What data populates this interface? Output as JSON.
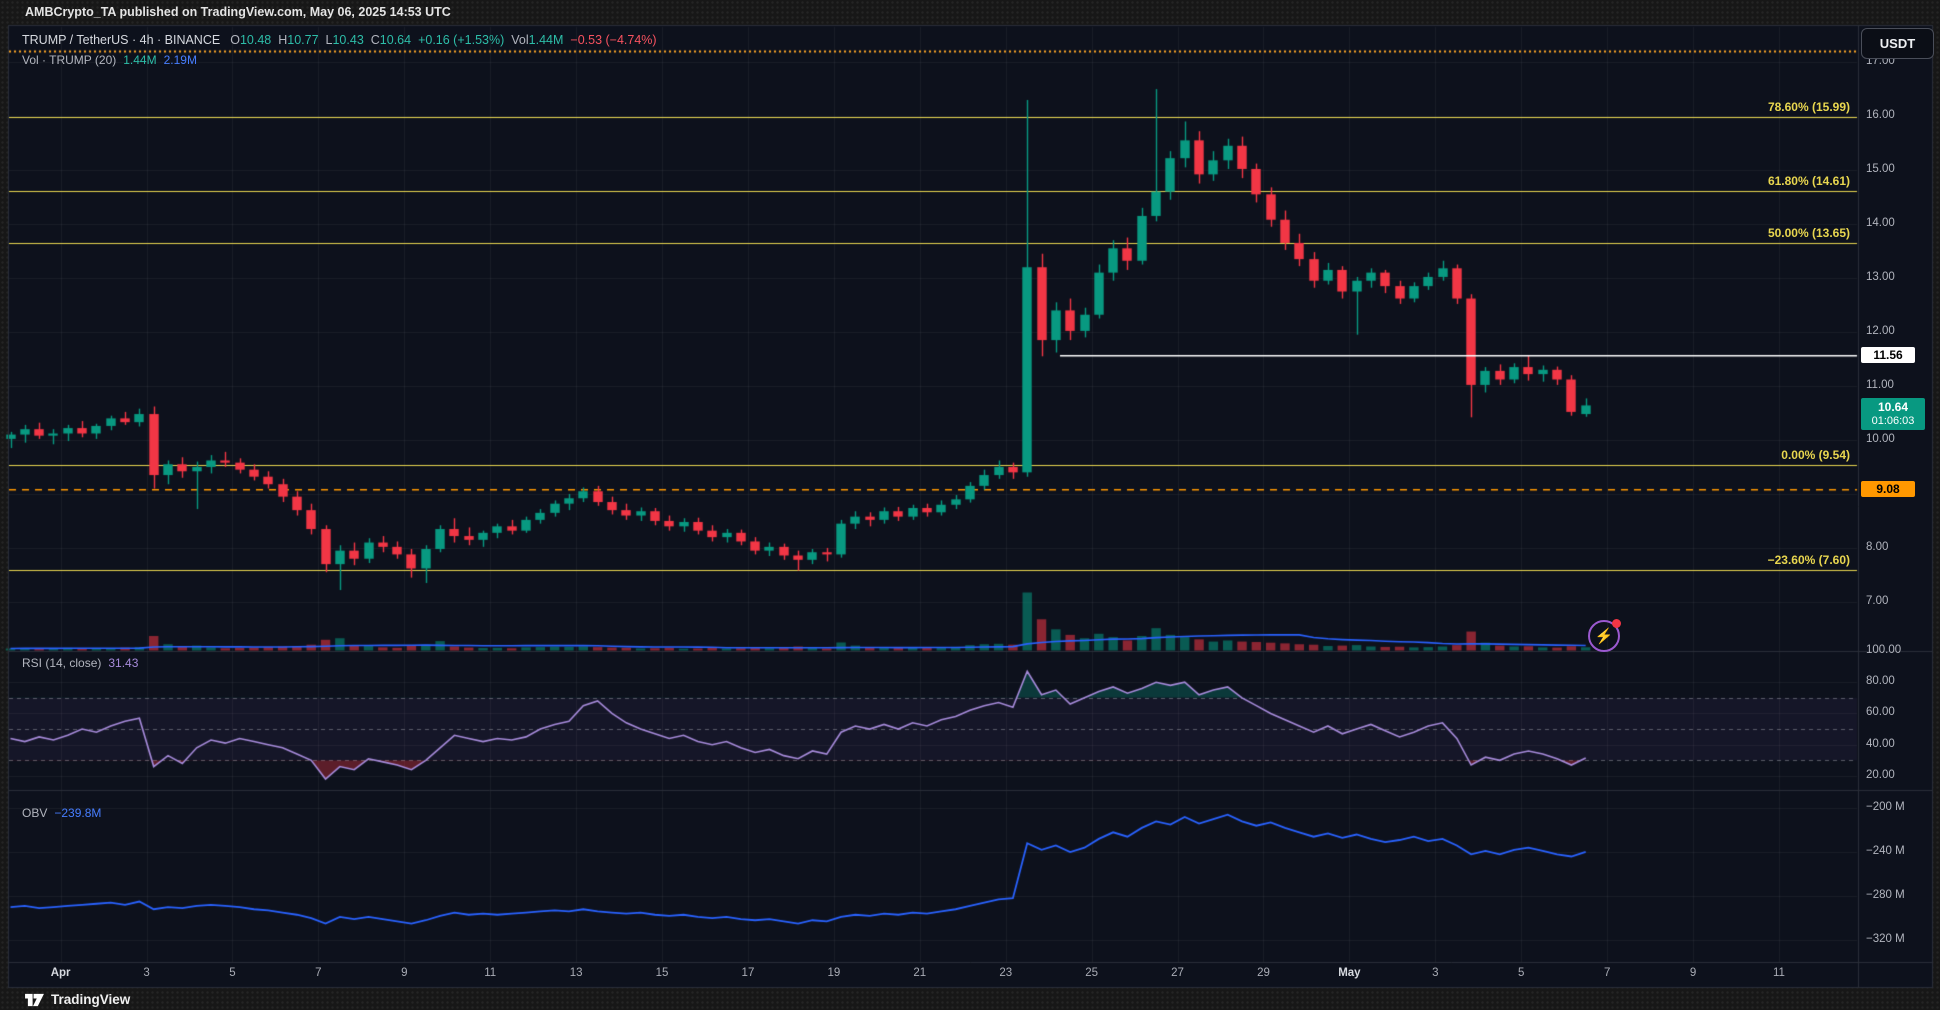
{
  "header": {
    "attribution": "AMBCrypto_TA published on TradingView.com, May 06, 2025 14:53 UTC",
    "currency": "USDT"
  },
  "legend": {
    "symbol": "TRUMP / TetherUS · 4h · BINANCE",
    "o_label": "O",
    "o_value": "10.48",
    "h_label": "H",
    "h_value": "10.77",
    "l_label": "L",
    "l_value": "10.43",
    "c_label": "C",
    "c_value": "10.64",
    "change": "+0.16 (+1.53%)",
    "vol_label": "Vol",
    "vol_value": "1.44M",
    "vol_change": "−0.53 (−4.74%)",
    "row2_label": "Vol · TRUMP (20)",
    "row2_value1": "1.44M",
    "row2_value2": "2.19M"
  },
  "rsi_pane": {
    "label": "RSI (14, close)",
    "value": "31.43"
  },
  "obv_pane": {
    "label": "OBV",
    "value": "−239.8M"
  },
  "footer": {
    "brand": "TradingView"
  },
  "icons": {
    "flash_bolt": "⚡"
  },
  "colors": {
    "up": "#089981",
    "down": "#f23645",
    "fib": "#e8d64f",
    "alert": "#ff9800",
    "rsi_line": "#a78bdb",
    "obv_line": "#2962ff",
    "vol_ma": "#2962ff",
    "white_line": "#ffffff",
    "last_label_bg": "#089981"
  },
  "chart_data": {
    "type": "candlestick",
    "symbol": "TRUMP / TetherUS",
    "exchange": "BINANCE",
    "interval": "4h",
    "note": "candles downsampled to ~8h for recreation; o,h,l,c,volume(M)",
    "candles": [
      [
        10.02,
        10.15,
        9.85,
        10.1,
        0.9
      ],
      [
        10.1,
        10.28,
        9.95,
        10.2,
        1.1
      ],
      [
        10.2,
        10.32,
        10.02,
        10.08,
        0.8
      ],
      [
        10.08,
        10.2,
        9.92,
        10.12,
        1.0
      ],
      [
        10.12,
        10.28,
        9.98,
        10.22,
        1.2
      ],
      [
        10.22,
        10.35,
        10.05,
        10.12,
        0.9
      ],
      [
        10.12,
        10.3,
        10.02,
        10.26,
        1.0
      ],
      [
        10.26,
        10.45,
        10.18,
        10.4,
        1.1
      ],
      [
        10.4,
        10.52,
        10.28,
        10.33,
        1.3
      ],
      [
        10.33,
        10.58,
        10.25,
        10.48,
        1.5
      ],
      [
        10.48,
        10.62,
        9.1,
        9.35,
        6.5
      ],
      [
        9.35,
        9.62,
        9.18,
        9.55,
        2.8
      ],
      [
        9.55,
        9.68,
        9.3,
        9.42,
        1.6
      ],
      [
        9.42,
        9.6,
        8.72,
        9.5,
        2.2
      ],
      [
        9.5,
        9.72,
        9.38,
        9.62,
        1.4
      ],
      [
        9.62,
        9.78,
        9.5,
        9.58,
        1.0
      ],
      [
        9.58,
        9.66,
        9.38,
        9.45,
        1.1
      ],
      [
        9.45,
        9.55,
        9.25,
        9.32,
        1.3
      ],
      [
        9.32,
        9.42,
        9.1,
        9.18,
        1.5
      ],
      [
        9.18,
        9.28,
        8.85,
        8.95,
        1.8
      ],
      [
        8.95,
        9.05,
        8.6,
        8.7,
        2.0
      ],
      [
        8.7,
        8.82,
        8.25,
        8.35,
        2.6
      ],
      [
        8.35,
        8.42,
        7.55,
        7.7,
        4.8
      ],
      [
        7.7,
        8.05,
        7.22,
        7.95,
        5.5
      ],
      [
        7.95,
        8.1,
        7.68,
        7.8,
        2.4
      ],
      [
        7.8,
        8.18,
        7.72,
        8.1,
        2.0
      ],
      [
        8.1,
        8.22,
        7.92,
        8.02,
        1.4
      ],
      [
        8.02,
        8.12,
        7.8,
        7.88,
        1.2
      ],
      [
        7.88,
        7.98,
        7.45,
        7.62,
        2.2
      ],
      [
        7.62,
        8.05,
        7.35,
        7.98,
        2.6
      ],
      [
        7.98,
        8.42,
        7.92,
        8.35,
        4.2
      ],
      [
        8.35,
        8.55,
        8.1,
        8.22,
        1.8
      ],
      [
        8.22,
        8.38,
        8.05,
        8.15,
        1.3
      ],
      [
        8.15,
        8.32,
        8.02,
        8.28,
        1.1
      ],
      [
        8.28,
        8.45,
        8.18,
        8.4,
        1.2
      ],
      [
        8.4,
        8.52,
        8.25,
        8.32,
        1.0
      ],
      [
        8.32,
        8.58,
        8.28,
        8.52,
        1.4
      ],
      [
        8.52,
        8.72,
        8.45,
        8.65,
        1.5
      ],
      [
        8.65,
        8.88,
        8.58,
        8.82,
        1.7
      ],
      [
        8.82,
        9.0,
        8.7,
        8.92,
        1.6
      ],
      [
        8.92,
        9.12,
        8.85,
        9.05,
        1.8
      ],
      [
        9.05,
        9.15,
        8.78,
        8.85,
        1.5
      ],
      [
        8.85,
        8.95,
        8.62,
        8.7,
        1.3
      ],
      [
        8.7,
        8.82,
        8.52,
        8.6,
        1.2
      ],
      [
        8.6,
        8.75,
        8.5,
        8.68,
        0.9
      ],
      [
        8.68,
        8.74,
        8.42,
        8.5,
        1.0
      ],
      [
        8.5,
        8.6,
        8.32,
        8.4,
        1.1
      ],
      [
        8.4,
        8.55,
        8.3,
        8.48,
        0.8
      ],
      [
        8.48,
        8.56,
        8.25,
        8.32,
        0.9
      ],
      [
        8.32,
        8.42,
        8.12,
        8.2,
        1.2
      ],
      [
        8.2,
        8.35,
        8.1,
        8.28,
        0.9
      ],
      [
        8.28,
        8.34,
        8.05,
        8.12,
        1.0
      ],
      [
        8.12,
        8.2,
        7.88,
        7.95,
        1.4
      ],
      [
        7.95,
        8.1,
        7.85,
        8.02,
        1.0
      ],
      [
        8.02,
        8.08,
        7.78,
        7.86,
        1.2
      ],
      [
        7.86,
        7.95,
        7.58,
        7.78,
        1.8
      ],
      [
        7.78,
        7.98,
        7.7,
        7.92,
        1.1
      ],
      [
        7.92,
        8.0,
        7.75,
        7.88,
        0.9
      ],
      [
        7.88,
        8.52,
        7.82,
        8.45,
        3.6
      ],
      [
        8.45,
        8.68,
        8.35,
        8.58,
        2.2
      ],
      [
        8.58,
        8.66,
        8.4,
        8.52,
        1.4
      ],
      [
        8.52,
        8.75,
        8.45,
        8.68,
        1.5
      ],
      [
        8.68,
        8.76,
        8.5,
        8.58,
        1.1
      ],
      [
        8.58,
        8.8,
        8.52,
        8.74,
        1.2
      ],
      [
        8.74,
        8.82,
        8.58,
        8.66,
        1.3
      ],
      [
        8.66,
        8.88,
        8.6,
        8.8,
        1.4
      ],
      [
        8.8,
        8.98,
        8.72,
        8.9,
        1.6
      ],
      [
        8.9,
        9.22,
        8.84,
        9.15,
        2.4
      ],
      [
        9.15,
        9.45,
        9.08,
        9.35,
        2.8
      ],
      [
        9.35,
        9.62,
        9.28,
        9.5,
        3.0
      ],
      [
        9.5,
        9.58,
        9.28,
        9.4,
        2.6
      ],
      [
        9.4,
        16.3,
        9.32,
        13.2,
        26.0
      ],
      [
        13.2,
        13.45,
        11.55,
        11.85,
        14.0
      ],
      [
        11.85,
        12.55,
        11.62,
        12.4,
        9.5
      ],
      [
        12.4,
        12.62,
        11.85,
        12.02,
        7.0
      ],
      [
        12.02,
        12.45,
        11.9,
        12.32,
        5.5
      ],
      [
        12.32,
        13.25,
        12.25,
        13.1,
        7.5
      ],
      [
        13.1,
        13.7,
        12.95,
        13.55,
        6.0
      ],
      [
        13.55,
        13.75,
        13.15,
        13.32,
        4.5
      ],
      [
        13.32,
        14.3,
        13.25,
        14.15,
        6.5
      ],
      [
        14.15,
        16.5,
        14.05,
        14.6,
        10.0
      ],
      [
        14.6,
        15.35,
        14.45,
        15.22,
        7.0
      ],
      [
        15.22,
        15.9,
        15.05,
        15.55,
        6.0
      ],
      [
        15.55,
        15.72,
        14.75,
        14.92,
        5.0
      ],
      [
        14.92,
        15.35,
        14.8,
        15.18,
        4.0
      ],
      [
        15.18,
        15.58,
        15.02,
        15.45,
        4.5
      ],
      [
        15.45,
        15.62,
        14.85,
        15.02,
        4.0
      ],
      [
        15.02,
        15.12,
        14.4,
        14.55,
        3.8
      ],
      [
        14.55,
        14.68,
        13.95,
        14.08,
        3.5
      ],
      [
        14.08,
        14.25,
        13.52,
        13.65,
        3.2
      ],
      [
        13.65,
        13.82,
        13.22,
        13.35,
        2.8
      ],
      [
        13.35,
        13.48,
        12.82,
        12.95,
        2.6
      ],
      [
        12.95,
        13.28,
        12.88,
        13.15,
        2.0
      ],
      [
        13.15,
        13.22,
        12.62,
        12.75,
        2.2
      ],
      [
        12.75,
        13.02,
        11.95,
        12.95,
        2.4
      ],
      [
        12.95,
        13.18,
        12.82,
        13.1,
        1.8
      ],
      [
        13.1,
        13.15,
        12.72,
        12.85,
        1.6
      ],
      [
        12.85,
        12.95,
        12.52,
        12.62,
        1.7
      ],
      [
        12.62,
        12.92,
        12.55,
        12.85,
        1.4
      ],
      [
        12.85,
        13.1,
        12.78,
        13.02,
        1.5
      ],
      [
        13.02,
        13.32,
        12.95,
        13.18,
        1.8
      ],
      [
        13.18,
        13.25,
        12.52,
        12.62,
        2.4
      ],
      [
        12.62,
        12.7,
        10.42,
        11.02,
        8.5
      ],
      [
        11.02,
        11.35,
        10.88,
        11.28,
        3.5
      ],
      [
        11.28,
        11.4,
        11.02,
        11.12,
        2.2
      ],
      [
        11.12,
        11.42,
        11.05,
        11.35,
        1.8
      ],
      [
        11.35,
        11.56,
        11.1,
        11.22,
        1.9
      ],
      [
        11.22,
        11.38,
        11.08,
        11.3,
        1.4
      ],
      [
        11.3,
        11.36,
        11.02,
        11.12,
        1.3
      ],
      [
        11.12,
        11.2,
        10.45,
        10.52,
        1.9
      ],
      [
        10.48,
        10.77,
        10.43,
        10.64,
        1.44
      ]
    ],
    "indicators": {
      "vol_ma": {
        "length": 20,
        "current": "2.19M"
      },
      "rsi": {
        "length": 14,
        "source": "close",
        "current": 31.43,
        "bands": [
          70,
          50,
          30
        ],
        "values": [
          44,
          42,
          45,
          43,
          46,
          50,
          48,
          52,
          55,
          57,
          26,
          33,
          28,
          38,
          43,
          41,
          44,
          42,
          40,
          38,
          34,
          30,
          18,
          26,
          24,
          31,
          29,
          27,
          24,
          30,
          38,
          46,
          44,
          42,
          44,
          43,
          45,
          50,
          53,
          55,
          65,
          68,
          60,
          54,
          50,
          47,
          44,
          46,
          42,
          40,
          42,
          38,
          35,
          37,
          33,
          31,
          36,
          34,
          48,
          52,
          50,
          53,
          50,
          54,
          52,
          56,
          58,
          62,
          65,
          67,
          64,
          87,
          72,
          75,
          66,
          70,
          74,
          77,
          73,
          76,
          80,
          78,
          80,
          72,
          75,
          77,
          70,
          65,
          60,
          56,
          52,
          48,
          52,
          47,
          50,
          53,
          49,
          45,
          48,
          52,
          54,
          44,
          27,
          32,
          30,
          34,
          36,
          34,
          31,
          27,
          31.43
        ]
      },
      "obv": {
        "current": -239.8,
        "values_m": [
          -290,
          -289,
          -291,
          -290,
          -289,
          -288,
          -287,
          -286,
          -288,
          -285,
          -292,
          -290,
          -291,
          -289,
          -288,
          -289,
          -290,
          -292,
          -293,
          -295,
          -297,
          -300,
          -305,
          -299,
          -301,
          -299,
          -301,
          -303,
          -305,
          -302,
          -298,
          -295,
          -297,
          -296,
          -297,
          -296,
          -295,
          -294,
          -293,
          -294,
          -292,
          -294,
          -295,
          -296,
          -295,
          -297,
          -298,
          -297,
          -299,
          -300,
          -299,
          -301,
          -302,
          -301,
          -303,
          -305,
          -302,
          -303,
          -299,
          -297,
          -298,
          -296,
          -297,
          -295,
          -296,
          -294,
          -292,
          -289,
          -286,
          -283,
          -282,
          -232,
          -238,
          -234,
          -240,
          -236,
          -228,
          -222,
          -226,
          -218,
          -212,
          -215,
          -208,
          -214,
          -210,
          -206,
          -212,
          -216,
          -213,
          -218,
          -222,
          -226,
          -223,
          -227,
          -224,
          -228,
          -231,
          -229,
          -226,
          -230,
          -228,
          -234,
          -242,
          -239,
          -242,
          -238,
          -236,
          -239,
          -242,
          -244,
          -239.8
        ]
      }
    },
    "fib_levels": [
      {
        "pct": "78.60%",
        "value": 15.99,
        "label": "78.60% (15.99)"
      },
      {
        "pct": "61.80%",
        "value": 14.61,
        "label": "61.80% (14.61)"
      },
      {
        "pct": "50.00%",
        "value": 13.65,
        "label": "50.00% (13.65)"
      },
      {
        "pct": "0.00%",
        "value": 9.54,
        "label": "0.00% (9.54)"
      },
      {
        "pct": "−23.60%",
        "value": 7.6,
        "label": "−23.60% (7.60)"
      }
    ],
    "lines": {
      "resistance_white": {
        "price": 11.56,
        "label": "11.56"
      },
      "alert_orange": {
        "price": 9.08,
        "label": "9.08"
      },
      "top_dotted_orange": true
    },
    "last_price": {
      "value": "10.64",
      "countdown": "01:06:03",
      "numeric": 10.64
    },
    "axes": {
      "price_ticks": [
        {
          "t": "17.00",
          "v": 17
        },
        {
          "t": "16.00",
          "v": 16
        },
        {
          "t": "15.00",
          "v": 15
        },
        {
          "t": "14.00",
          "v": 14
        },
        {
          "t": "13.00",
          "v": 13
        },
        {
          "t": "12.00",
          "v": 12
        },
        {
          "t": "11.00",
          "v": 11
        },
        {
          "t": "10.00",
          "v": 10
        },
        {
          "t": "8.00",
          "v": 8
        },
        {
          "t": "7.00",
          "v": 7
        }
      ],
      "price_grid": [
        17,
        16,
        15,
        14,
        13,
        12,
        11,
        10,
        9,
        8,
        7
      ],
      "rsi_ticks": [
        {
          "t": "100.00",
          "v": 100
        },
        {
          "t": "80.00",
          "v": 80
        },
        {
          "t": "60.00",
          "v": 60
        },
        {
          "t": "40.00",
          "v": 40
        },
        {
          "t": "20.00",
          "v": 20
        }
      ],
      "obv_ticks": [
        {
          "t": "−200 M",
          "v": -200
        },
        {
          "t": "−240 M",
          "v": -240
        },
        {
          "t": "−280 M",
          "v": -280
        },
        {
          "t": "−320 M",
          "v": -320
        }
      ],
      "time_labels": [
        {
          "label": "Apr",
          "month": true
        },
        {
          "label": "3"
        },
        {
          "label": "5"
        },
        {
          "label": "7"
        },
        {
          "label": "9"
        },
        {
          "label": "11"
        },
        {
          "label": "13"
        },
        {
          "label": "15"
        },
        {
          "label": "17"
        },
        {
          "label": "19"
        },
        {
          "label": "21"
        },
        {
          "label": "23"
        },
        {
          "label": "25"
        },
        {
          "label": "27"
        },
        {
          "label": "29"
        },
        {
          "label": "May",
          "month": true
        },
        {
          "label": "3"
        },
        {
          "label": "5"
        },
        {
          "label": "7"
        },
        {
          "label": "9"
        },
        {
          "label": "11"
        }
      ]
    },
    "ranges": {
      "price": [
        6.1,
        17.65
      ],
      "rsi": [
        11,
        100
      ],
      "obv": [
        -340,
        -183.5
      ]
    }
  }
}
